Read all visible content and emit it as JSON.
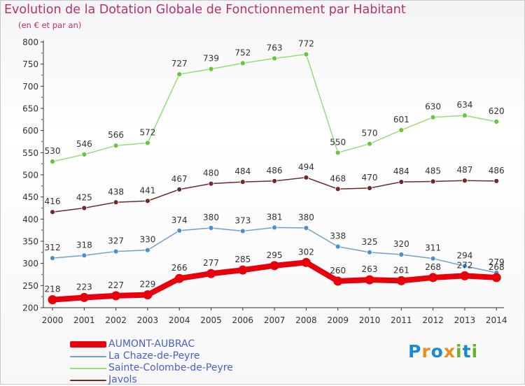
{
  "title": "Evolution de la Dotation Globale de Fonctionnement par Habitant",
  "subtitle": "(en € et par an)",
  "logo": {
    "letters": [
      "P",
      "r",
      "o",
      "x",
      "i",
      "t",
      "i"
    ],
    "colors": [
      "#1e88d0",
      "#e8901e",
      "#1e88d0",
      "#e8901e",
      "#66b22e",
      "#1e88d0",
      "#66b22e"
    ]
  },
  "chart_data": {
    "type": "line",
    "title": "Evolution de la Dotation Globale de Fonctionnement par Habitant",
    "xlabel": "",
    "ylabel": "",
    "x": [
      "2000",
      "2001",
      "2002",
      "2003",
      "2004",
      "2005",
      "2006",
      "2007",
      "2008",
      "2009",
      "2010",
      "2011",
      "2012",
      "2013",
      "2014"
    ],
    "ylim": [
      200,
      800
    ],
    "yticks": [
      "200",
      "250",
      "300",
      "350",
      "400",
      "450",
      "500",
      "550",
      "600",
      "650",
      "700",
      "750",
      "800"
    ],
    "grid": false,
    "legend_position": "bottom-left",
    "series": [
      {
        "name": "AUMONT-AUBRAC",
        "color": "#e8000c",
        "marker_color": "#e8000c",
        "values": [
          218,
          223,
          227,
          229,
          266,
          277,
          285,
          295,
          302,
          260,
          263,
          261,
          268,
          272,
          268
        ],
        "labels": [
          "218",
          "223",
          "227",
          "229",
          "266",
          "277",
          "285",
          "295",
          "302",
          "260",
          "263",
          "261",
          "268",
          "272",
          "268"
        ]
      },
      {
        "name": "La Chaze-de-Peyre",
        "color": "#6f9fd0",
        "marker_color": "#4a8fd2",
        "values": [
          312,
          318,
          327,
          330,
          374,
          380,
          373,
          381,
          380,
          338,
          325,
          320,
          311,
          294,
          279
        ],
        "labels": [
          "312",
          "318",
          "327",
          "330",
          "374",
          "380",
          "373",
          "381",
          "380",
          "338",
          "325",
          "320",
          "311",
          "294",
          "279"
        ]
      },
      {
        "name": "Sainte-Colombe-de-Peyre",
        "color": "#98dc78",
        "marker_color": "#6ac43c",
        "values": [
          530,
          546,
          566,
          572,
          727,
          739,
          752,
          763,
          772,
          550,
          570,
          601,
          630,
          634,
          620
        ],
        "labels": [
          "530",
          "546",
          "566",
          "572",
          "727",
          "739",
          "752",
          "763",
          "772",
          "550",
          "570",
          "601",
          "630",
          "634",
          "620"
        ]
      },
      {
        "name": "Javols",
        "color": "#6e2a2c",
        "marker_color": "#6e2a2c",
        "values": [
          416,
          425,
          438,
          441,
          467,
          480,
          484,
          486,
          494,
          468,
          470,
          484,
          485,
          487,
          486
        ],
        "labels": [
          "416",
          "425",
          "438",
          "441",
          "467",
          "480",
          "484",
          "486",
          "494",
          "468",
          "470",
          "484",
          "485",
          "487",
          "486"
        ]
      }
    ]
  }
}
